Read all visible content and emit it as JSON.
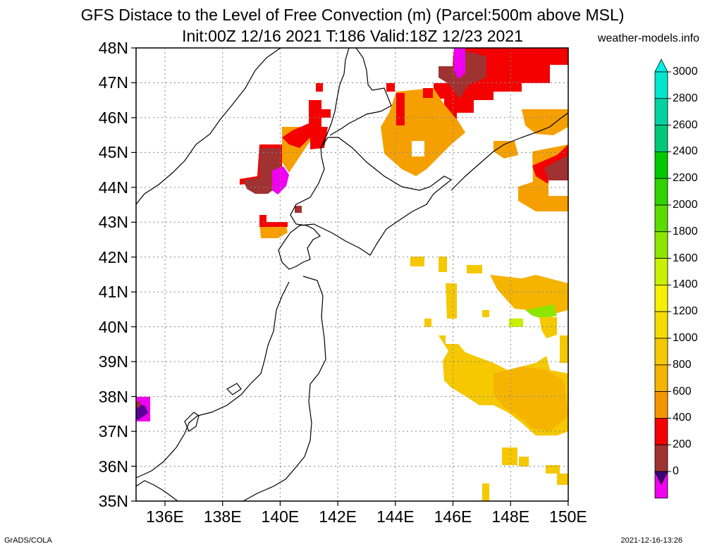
{
  "title": "GFS Distace to the Level of Free Convection (m) (Parcel:500m above MSL)",
  "subtitle": "Init:00Z 12/16 2021 T:186 Valid:18Z 12/23 2021",
  "source": "weather-models.info",
  "footer_left": "GrADS/COLA",
  "footer_right": "2021-12-16-13:26",
  "lat_labels": [
    "48N",
    "47N",
    "46N",
    "45N",
    "44N",
    "43N",
    "42N",
    "41N",
    "40N",
    "39N",
    "38N",
    "37N",
    "36N",
    "35N"
  ],
  "lon_labels": [
    "136E",
    "138E",
    "140E",
    "142E",
    "144E",
    "146E",
    "148E",
    "150E"
  ],
  "colorbar": {
    "labels": [
      "3000",
      "2800",
      "2600",
      "2400",
      "2200",
      "2000",
      "1800",
      "1600",
      "1400",
      "1200",
      "1000",
      "800",
      "600",
      "400",
      "200",
      "0"
    ],
    "colors": [
      "#00e6cc",
      "#00d2a0",
      "#00c878",
      "#00c800",
      "#30d200",
      "#5adc00",
      "#8ce600",
      "#c8f000",
      "#f5f000",
      "#f5dc00",
      "#f5c800",
      "#f5b400",
      "#f59600",
      "#f50000",
      "#a03232",
      "#f000f0",
      "#5a0096"
    ],
    "top_color": "#00f0e6",
    "bottom_color": "#3c0078"
  }
}
